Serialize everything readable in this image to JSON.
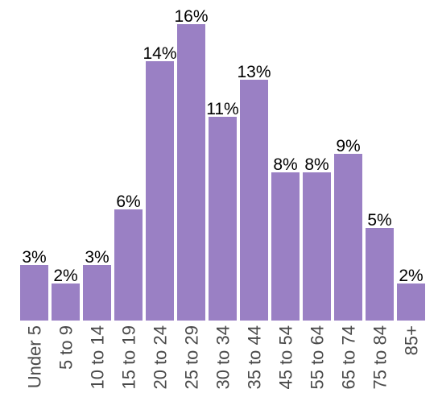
{
  "chart_data": {
    "type": "bar",
    "categories": [
      "Under 5",
      "5 to 9",
      "10 to 14",
      "15 to 19",
      "20 to 24",
      "25 to 29",
      "30 to 34",
      "35 to 44",
      "45 to 54",
      "55 to 64",
      "65 to 74",
      "75 to 84",
      "85+"
    ],
    "values": [
      3,
      2,
      3,
      6,
      14,
      16,
      11,
      13,
      8,
      8,
      9,
      5,
      2
    ],
    "data_labels": [
      "3%",
      "2%",
      "3%",
      "6%",
      "14%",
      "16%",
      "11%",
      "13%",
      "8%",
      "8%",
      "9%",
      "5%",
      "2%"
    ],
    "unit": "%",
    "title": "",
    "xlabel": "",
    "ylabel": "",
    "ylim": [
      0,
      16
    ],
    "grid": false,
    "legend": "none",
    "bar_color": "#9a80c4"
  }
}
